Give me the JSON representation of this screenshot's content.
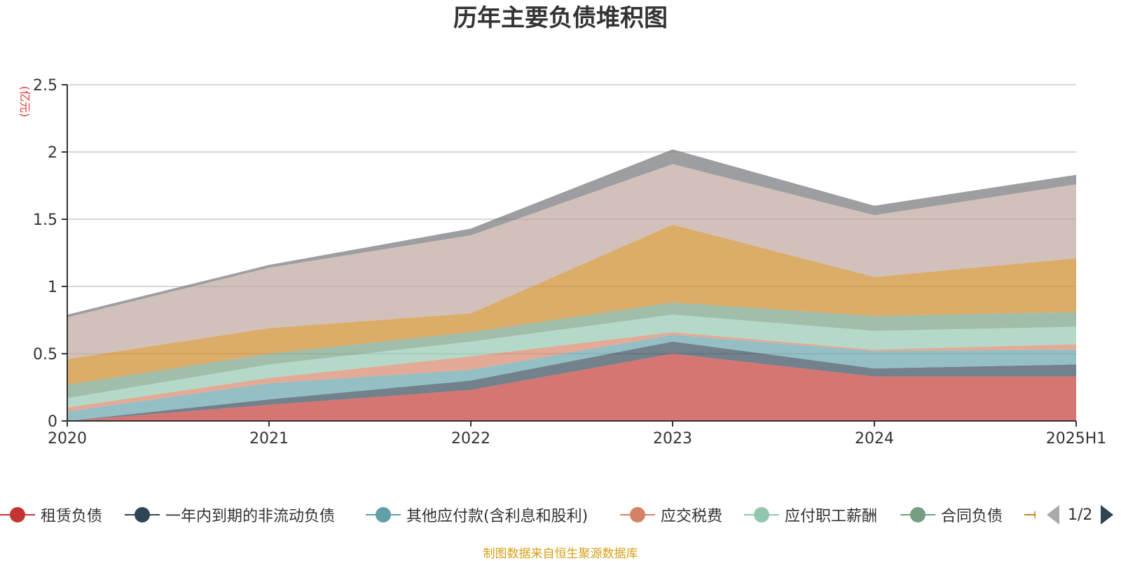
{
  "chart_data": {
    "type": "area",
    "stacked": true,
    "title": "历年主要负债堆积图",
    "unit_label": "(亿元)",
    "categories": [
      "2020",
      "2021",
      "2022",
      "2023",
      "2024",
      "2025H1"
    ],
    "ylim": [
      0,
      2.5
    ],
    "yticks": [
      0,
      0.5,
      1,
      1.5,
      2,
      2.5
    ],
    "ytick_labels": [
      "0",
      "0.5",
      "1",
      "1.5",
      "2",
      "2.5"
    ],
    "grid": true,
    "legend_position": "bottom",
    "series": [
      {
        "name": "租赁负债",
        "color": "#c23531",
        "values": [
          0.0,
          0.12,
          0.23,
          0.5,
          0.33,
          0.33
        ]
      },
      {
        "name": "一年内到期的非流动负债",
        "color": "#2f4554",
        "values": [
          0.0,
          0.04,
          0.07,
          0.09,
          0.06,
          0.09
        ]
      },
      {
        "name": "其他应付款(含利息和股利)",
        "color": "#61a0a8",
        "values": [
          0.07,
          0.12,
          0.08,
          0.05,
          0.13,
          0.11
        ]
      },
      {
        "name": "应交税费",
        "color": "#d48265",
        "values": [
          0.03,
          0.04,
          0.1,
          0.02,
          0.01,
          0.04
        ]
      },
      {
        "name": "应付职工薪酬",
        "color": "#91c7ae",
        "values": [
          0.07,
          0.1,
          0.11,
          0.13,
          0.14,
          0.13
        ]
      },
      {
        "name": "合同负债",
        "color": "#749f83",
        "values": [
          0.1,
          0.08,
          0.07,
          0.09,
          0.11,
          0.11
        ]
      },
      {
        "name": "",
        "color": "#ca8622",
        "values": [
          0.19,
          0.19,
          0.14,
          0.58,
          0.29,
          0.4
        ]
      },
      {
        "name": "",
        "color": "#bda29a",
        "values": [
          0.31,
          0.45,
          0.58,
          0.45,
          0.46,
          0.55
        ]
      },
      {
        "name": "",
        "color": "#6e7074",
        "values": [
          0.02,
          0.02,
          0.05,
          0.11,
          0.07,
          0.07
        ]
      }
    ]
  },
  "legend": {
    "page_indicator": "1/2"
  },
  "footer": {
    "source": "制图数据来自恒生聚源数据库"
  }
}
